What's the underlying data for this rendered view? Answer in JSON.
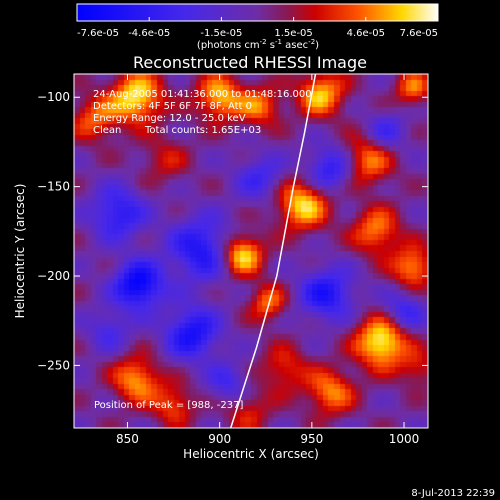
{
  "chart_data": {
    "type": "heatmap",
    "title": "Reconstructed RHESSI Image",
    "xlabel": "Heliocentric X (arcsec)",
    "ylabel": "Heliocentric Y (arcsec)",
    "xlim": [
      821,
      1013
    ],
    "ylim": [
      -285,
      -87
    ],
    "xticks": [
      850,
      900,
      950,
      1000
    ],
    "yticks": [
      -100,
      -150,
      -200,
      -250
    ],
    "colorbar": {
      "min": -7.6e-05,
      "max": 7.6e-05,
      "tick_labels": [
        "-7.6e-05",
        "-4.6e-05",
        "-1.5e-05",
        "1.5e-05",
        "4.6e-05",
        "7.6e-05"
      ],
      "units_prefix": "(photons cm",
      "units_exp1": "-2",
      "units_mid": " s",
      "units_exp2": "-1",
      "units_mid2": " asec",
      "units_exp3": "-2",
      "units_suffix": ")"
    },
    "annotations": {
      "time_range": "24-Aug-2005 01:41:36.000 to 01:48:16.000",
      "detectors": "Detectors: 4F 5F 6F 7F 8F, Att 0",
      "energy_range": "Energy Range: 12.0 - 25.0 keV",
      "clean_label": "Clean",
      "total_counts": "Total counts: 1.65E+03",
      "position_of_peak": "Position of Peak = [988, -237]"
    },
    "limb": [
      [
        906,
        -285
      ],
      [
        920,
        -240
      ],
      [
        931,
        -200
      ],
      [
        940,
        -150
      ],
      [
        946,
        -120
      ],
      [
        952,
        -87
      ]
    ],
    "peak": {
      "x": 988,
      "y": -237
    },
    "sources": [
      {
        "x": 855,
        "y": -100,
        "amp": 7e-05,
        "s": 10
      },
      {
        "x": 832,
        "y": -112,
        "amp": 4.2e-05,
        "s": 9
      },
      {
        "x": 900,
        "y": -100,
        "amp": 6e-05,
        "s": 9
      },
      {
        "x": 922,
        "y": -105,
        "amp": 4.5e-05,
        "s": 8
      },
      {
        "x": 955,
        "y": -98,
        "amp": 6e-05,
        "s": 9
      },
      {
        "x": 980,
        "y": -135,
        "amp": 5e-05,
        "s": 10
      },
      {
        "x": 1005,
        "y": -95,
        "amp": 4.5e-05,
        "s": 7
      },
      {
        "x": 945,
        "y": -160,
        "amp": 6.5e-05,
        "s": 10
      },
      {
        "x": 985,
        "y": -175,
        "amp": 5e-05,
        "s": 9
      },
      {
        "x": 1005,
        "y": -195,
        "amp": 5.5e-05,
        "s": 8
      },
      {
        "x": 912,
        "y": -188,
        "amp": 7e-05,
        "s": 8
      },
      {
        "x": 926,
        "y": -215,
        "amp": 4.5e-05,
        "s": 7
      },
      {
        "x": 988,
        "y": -237,
        "amp": 7.6e-05,
        "s": 10
      },
      {
        "x": 960,
        "y": -265,
        "amp": 5e-05,
        "s": 9
      },
      {
        "x": 855,
        "y": -258,
        "amp": 5.5e-05,
        "s": 9
      },
      {
        "x": 875,
        "y": -272,
        "amp": 4e-05,
        "s": 8
      },
      {
        "x": 935,
        "y": -252,
        "amp": 3.5e-05,
        "s": 9
      },
      {
        "x": 915,
        "y": -275,
        "amp": 3e-05,
        "s": 9
      },
      {
        "x": 1008,
        "y": -252,
        "amp": 3e-05,
        "s": 7
      },
      {
        "x": 870,
        "y": -135,
        "amp": 2.5e-05,
        "s": 9
      },
      {
        "x": 856,
        "y": -205,
        "amp": -7.6e-05,
        "s": 9
      },
      {
        "x": 885,
        "y": -232,
        "amp": -6e-05,
        "s": 10
      },
      {
        "x": 890,
        "y": -185,
        "amp": -5.5e-05,
        "s": 12
      },
      {
        "x": 845,
        "y": -165,
        "amp": -5e-05,
        "s": 10
      },
      {
        "x": 960,
        "y": -140,
        "amp": -5e-05,
        "s": 9
      },
      {
        "x": 958,
        "y": -210,
        "amp": -5.5e-05,
        "s": 10
      },
      {
        "x": 922,
        "y": -145,
        "amp": -3.5e-05,
        "s": 9
      },
      {
        "x": 990,
        "y": -120,
        "amp": -3.5e-05,
        "s": 8
      },
      {
        "x": 1000,
        "y": -220,
        "amp": -4e-05,
        "s": 8
      },
      {
        "x": 905,
        "y": -260,
        "amp": -3.5e-05,
        "s": 8
      },
      {
        "x": 840,
        "y": -230,
        "amp": -3e-05,
        "s": 8
      }
    ]
  },
  "footer": {
    "timestamp": "8-Jul-2013 22:39"
  }
}
